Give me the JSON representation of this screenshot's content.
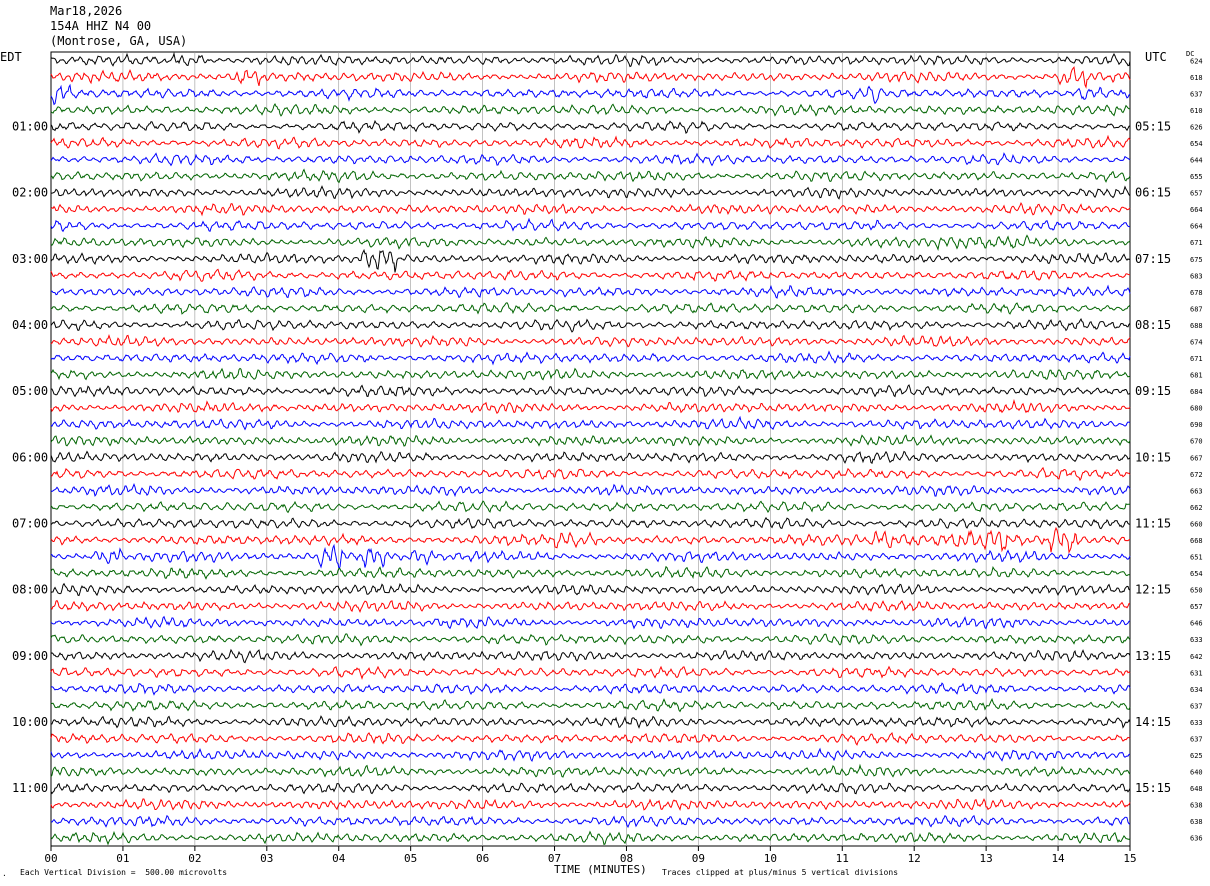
{
  "header": {
    "date": "Mar18,2026",
    "station": "154A HHZ N4 00",
    "location": "(Montrose, GA, USA)"
  },
  "left_tz": "EDT",
  "right_tz": "UTC",
  "dc_label": "DC",
  "footer": {
    "scale_note": "Each Vertical Division =  500.00 microvolts",
    "clip_note": "Traces clipped at plus/minus 5 vertical divisions"
  },
  "chart_data": {
    "type": "line",
    "title": "",
    "xlabel": "TIME (MINUTES)",
    "x_ticks": [
      "00",
      "01",
      "02",
      "03",
      "04",
      "05",
      "06",
      "07",
      "08",
      "09",
      "10",
      "11",
      "12",
      "13",
      "14",
      "15"
    ],
    "xlim": [
      0,
      15
    ],
    "left_time_labels": [
      "01:00",
      "02:00",
      "03:00",
      "04:00",
      "05:00",
      "06:00",
      "07:00",
      "08:00",
      "09:00",
      "10:00",
      "11:00"
    ],
    "right_time_labels": [
      "05:15",
      "06:15",
      "07:15",
      "08:15",
      "09:15",
      "10:15",
      "11:15",
      "12:15",
      "13:15",
      "14:15",
      "15:15"
    ],
    "trace_colors": [
      "#000000",
      "#ff0000",
      "#0000ff",
      "#006400"
    ],
    "dc_offsets": [
      624,
      618,
      637,
      610,
      626,
      654,
      644,
      655,
      657,
      664,
      664,
      671,
      675,
      683,
      678,
      687,
      688,
      674,
      671,
      681,
      684,
      680,
      690,
      670,
      667,
      672,
      663,
      662,
      660,
      668,
      651,
      654,
      650,
      657,
      646,
      633,
      642,
      631,
      634,
      637,
      633,
      637,
      625,
      640,
      648,
      638,
      638,
      636
    ],
    "events": [
      {
        "trace": 0,
        "minute_start": 1.7,
        "minute_end": 2.2,
        "amp": 1.2
      },
      {
        "trace": 1,
        "minute_start": 2.5,
        "minute_end": 2.9,
        "amp": 1.3
      },
      {
        "trace": 1,
        "minute_start": 14.0,
        "minute_end": 14.4,
        "amp": 1.5
      },
      {
        "trace": 2,
        "minute_start": 0.0,
        "minute_end": 0.3,
        "amp": 1.2
      },
      {
        "trace": 2,
        "minute_start": 11.3,
        "minute_end": 11.5,
        "amp": 1.3
      },
      {
        "trace": 2,
        "minute_start": 14.2,
        "minute_end": 14.6,
        "amp": 1.3
      },
      {
        "trace": 11,
        "minute_start": 12.3,
        "minute_end": 13.6,
        "amp": 0.6
      },
      {
        "trace": 12,
        "minute_start": 4.3,
        "minute_end": 4.8,
        "amp": 2.2
      },
      {
        "trace": 29,
        "minute_start": 7.0,
        "minute_end": 7.6,
        "amp": 0.9
      },
      {
        "trace": 29,
        "minute_start": 11.4,
        "minute_end": 12.6,
        "amp": 1.6
      },
      {
        "trace": 29,
        "minute_start": 12.6,
        "minute_end": 13.3,
        "amp": 1.7
      },
      {
        "trace": 29,
        "minute_start": 13.9,
        "minute_end": 14.3,
        "amp": 2.0
      },
      {
        "trace": 30,
        "minute_start": 0.6,
        "minute_end": 1.0,
        "amp": 2.0
      },
      {
        "trace": 30,
        "minute_start": 3.7,
        "minute_end": 4.1,
        "amp": 2.2
      },
      {
        "trace": 30,
        "minute_start": 4.3,
        "minute_end": 4.7,
        "amp": 1.7
      },
      {
        "trace": 30,
        "minute_start": 5.0,
        "minute_end": 5.3,
        "amp": 1.1
      }
    ]
  }
}
